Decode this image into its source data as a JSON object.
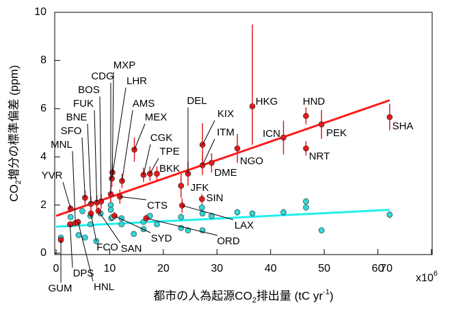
{
  "chart_data": {
    "type": "scatter",
    "x_label": [
      "都市の人為起源CO",
      "2",
      "排出量 (tC yr",
      "-1",
      ")"
    ],
    "y_label": [
      "CO",
      "2",
      "増分の標準偏差 (ppm)"
    ],
    "x_multiplier": [
      "x10",
      "6"
    ],
    "xlim": [
      0,
      70
    ],
    "ylim": [
      0,
      10
    ],
    "xticks": [
      0,
      10,
      20,
      30,
      40,
      50,
      60,
      70
    ],
    "yticks": [
      0,
      2,
      4,
      6,
      8,
      10
    ],
    "series": [
      {
        "color": "#e31a1c",
        "x": [
          0.9,
          2.6,
          4.1,
          2.7,
          3.6,
          5.4,
          6.5,
          7.6,
          8.4,
          10.2,
          10.5,
          10.4,
          12.3,
          14.6,
          16.3,
          17.5,
          18.8,
          11.9,
          6.5,
          7.9,
          10.9,
          16.8,
          23.5,
          23.3,
          27.2,
          24.6,
          27.3,
          27.3,
          29.0,
          33.8,
          36.6,
          42.4,
          46.6,
          46.6,
          49.5,
          62.2
        ],
        "values": [
          0.55,
          1.2,
          1.3,
          1.85,
          1.25,
          2.3,
          2.05,
          2.1,
          2.15,
          2.45,
          3.35,
          3.1,
          3.0,
          4.3,
          3.25,
          3.3,
          3.3,
          2.35,
          1.65,
          1.75,
          1.55,
          1.45,
          1.98,
          2.8,
          2.25,
          3.3,
          4.5,
          3.65,
          3.75,
          4.35,
          6.1,
          4.8,
          5.7,
          4.35,
          5.35,
          5.65
        ],
        "errors_minus": [
          0.1,
          0.1,
          0.1,
          0.15,
          0.1,
          0.3,
          0.3,
          0.3,
          0.3,
          0.35,
          0.35,
          0.35,
          0.3,
          0.5,
          0.3,
          0.3,
          0.3,
          0.3,
          0.15,
          0.15,
          0.15,
          0.15,
          0.3,
          0.5,
          0.2,
          0.5,
          0.9,
          0.4,
          0.4,
          0.6,
          1.6,
          0.7,
          0.35,
          0.3,
          0.6,
          0.55
        ],
        "errors_plus": [
          0.1,
          0.1,
          0.1,
          0.15,
          0.1,
          0.3,
          0.3,
          0.3,
          0.3,
          0.35,
          0.35,
          0.35,
          0.3,
          0.5,
          0.3,
          0.3,
          0.3,
          0.3,
          0.15,
          0.15,
          0.15,
          0.15,
          0.3,
          0.5,
          0.2,
          0.5,
          0.9,
          0.4,
          0.4,
          0.6,
          3.4,
          0.7,
          0.35,
          0.3,
          0.6,
          0.55
        ],
        "labels": [
          "GUM",
          "DPS",
          "HNL",
          "YVR",
          "MNL",
          "SFO",
          "BNE",
          "FUK",
          "BOS",
          "CDG",
          "MXP",
          "LHR",
          "AMS",
          "MEX",
          "CGK",
          "TPE",
          "BKK",
          "CTS",
          "FCO",
          "SAN",
          "SYD",
          "ORD",
          "LAX",
          "JFK",
          "SIN",
          "DEL",
          "KIX",
          "ITM",
          "DME",
          "NGO",
          "HKG",
          "ICN",
          "HND",
          "NRT",
          "PEK",
          "SHA"
        ],
        "fit_x": [
          0,
          62.2
        ],
        "fit_y": [
          1.55,
          6.35
        ],
        "fit_color": "#ff1a1a"
      },
      {
        "color": "#33d6d6",
        "x": [
          0.9,
          2.7,
          2.7,
          4.2,
          4.9,
          5.4,
          6.4,
          6.4,
          7.5,
          8.3,
          10.2,
          10.2,
          10.3,
          10.5,
          12.2,
          12.2,
          14.5,
          16.3,
          16.3,
          17.5,
          18.8,
          23.3,
          23.3,
          24.6,
          27.2,
          27.3,
          27.3,
          29,
          33.8,
          36.6,
          42.4,
          46.6,
          46.6,
          49.5,
          62.2
        ],
        "values": [
          0.65,
          1.2,
          1.5,
          0.75,
          1.75,
          0.65,
          1.55,
          1.2,
          0.5,
          1.65,
          2.0,
          1.8,
          1.45,
          1.5,
          1.45,
          1.2,
          0.8,
          1.3,
          1.0,
          1.55,
          1.2,
          1.5,
          1.05,
          0.95,
          1.9,
          1.65,
          0.95,
          1.55,
          1.7,
          1.65,
          1.7,
          2.15,
          1.9,
          0.95,
          1.6
        ],
        "errors": [
          0.1,
          0.1,
          0.1,
          0.1,
          0.12,
          0.1,
          0.12,
          0.1,
          0.1,
          0.12,
          0.15,
          0.12,
          0.1,
          0.1,
          0.12,
          0.1,
          0.1,
          0.12,
          0.1,
          0.12,
          0.1,
          0.15,
          0.1,
          0.1,
          0.15,
          0.12,
          0.1,
          0.12,
          0.15,
          0.12,
          0.15,
          0.15,
          0.15,
          0.1,
          0.15
        ],
        "fit_x": [
          0,
          62.2
        ],
        "fit_y": [
          1.1,
          1.8
        ],
        "fit_color": "#1ff0f0"
      }
    ]
  }
}
